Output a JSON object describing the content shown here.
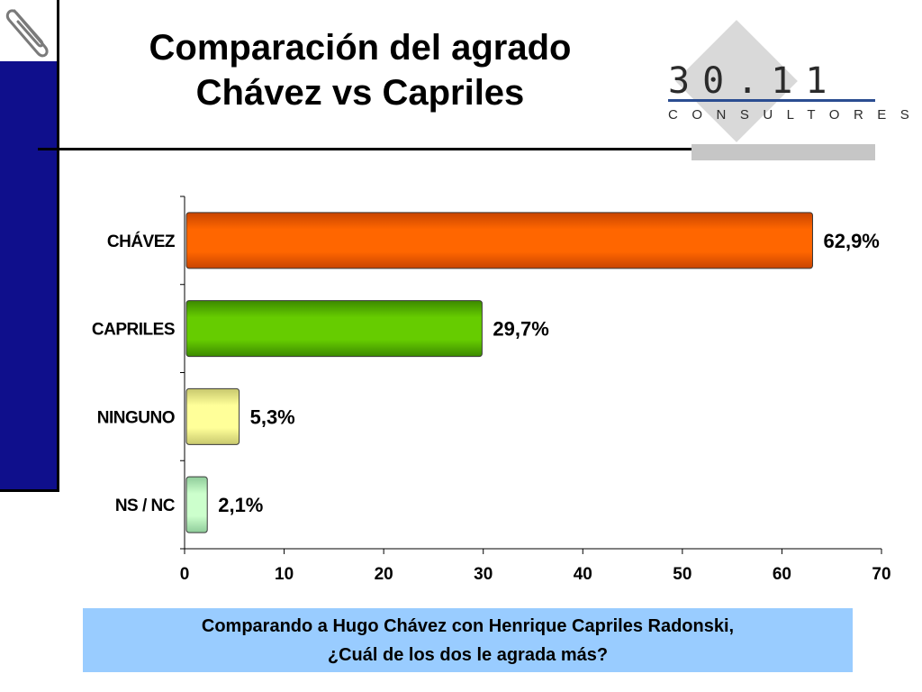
{
  "slide": {
    "title_line1": "Comparación del agrado",
    "title_line2": "Chávez vs Capriles",
    "logo_number": "30.11",
    "logo_subtitle": "CONSULTORES",
    "question_line1": "Comparando a Hugo Chávez con Henrique Capriles  Radonski,",
    "question_line2": "¿Cuál de los dos le agrada más?"
  },
  "chart_data": {
    "type": "bar",
    "orientation": "horizontal",
    "categories": [
      "CHÁVEZ",
      "CAPRILES",
      "NINGUNO",
      "NS / NC"
    ],
    "values": [
      62.9,
      29.7,
      5.3,
      2.1
    ],
    "data_labels": [
      "62,9%",
      "29,7%",
      "5,3%",
      "2,1%"
    ],
    "bar_colors": [
      "#ff6600",
      "#66cc00",
      "#ffff99",
      "#ccffcc"
    ],
    "bar_colors_dark": [
      "#c84400",
      "#3c8a00",
      "#c8c86e",
      "#8fcc9a"
    ],
    "xlim": [
      0,
      70
    ],
    "xticks": [
      0,
      10,
      20,
      30,
      40,
      50,
      60,
      70
    ],
    "grid": false,
    "legend": "none",
    "title": "",
    "xlabel": "",
    "ylabel": ""
  }
}
